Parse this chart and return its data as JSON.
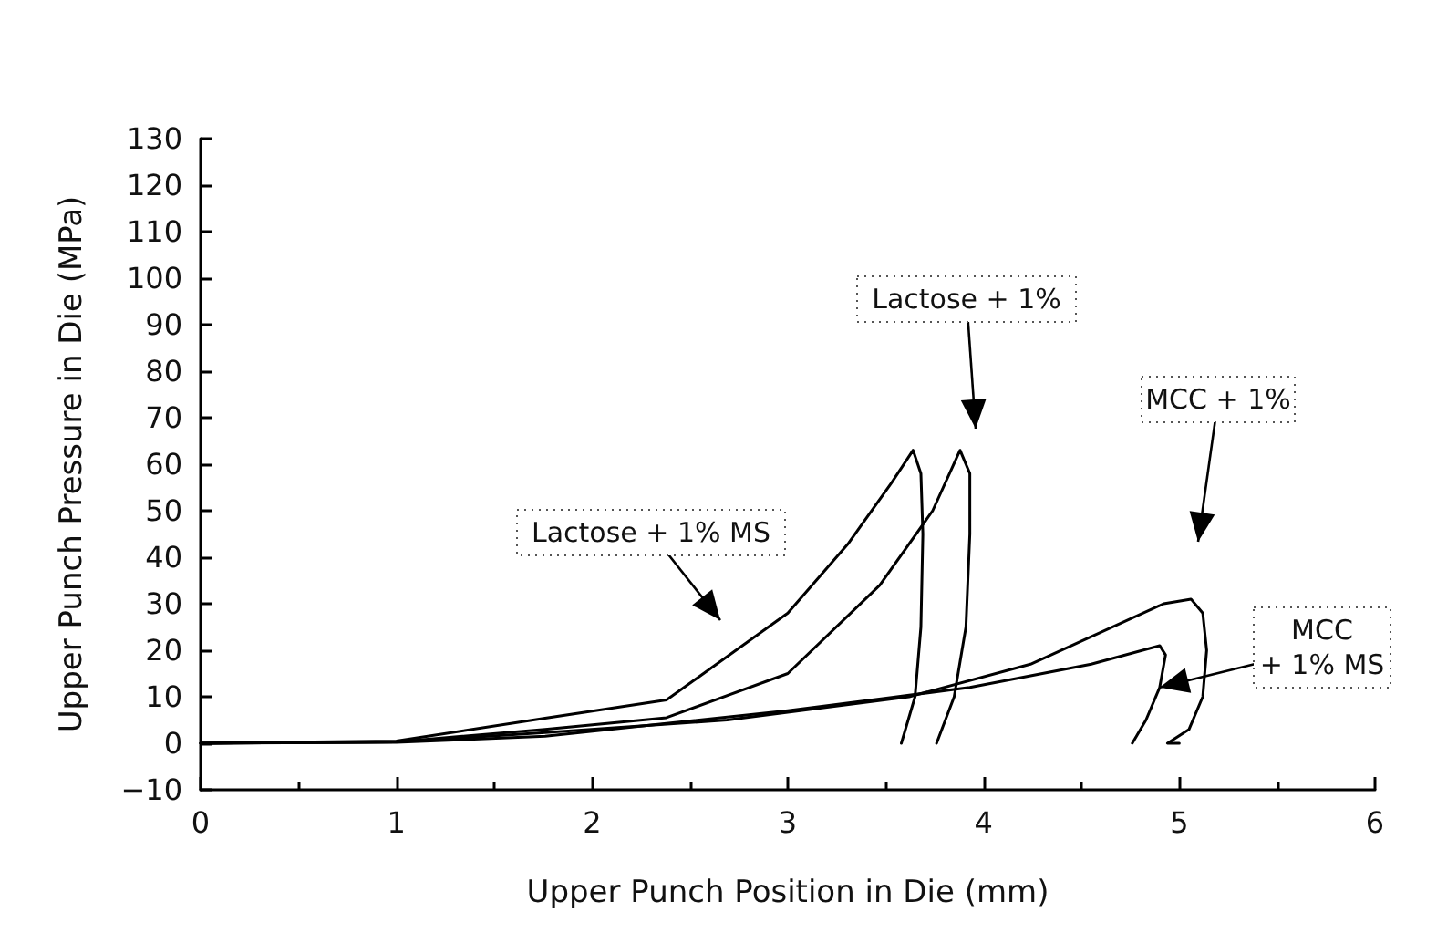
{
  "chart_data": {
    "type": "line",
    "xlabel": "Upper Punch Position in Die (mm)",
    "ylabel": "Upper Punch Pressure in Die (MPa)",
    "xlim": [
      0,
      6
    ],
    "xticks": [
      0,
      1,
      2,
      3,
      4,
      5,
      6
    ],
    "ylim": [
      -10,
      130
    ],
    "yticks": [
      -10,
      0,
      10,
      20,
      30,
      40,
      50,
      60,
      70,
      80,
      90,
      100,
      110,
      120,
      130
    ],
    "grid": false,
    "marker": "none",
    "line_style": "solid",
    "series": [
      {
        "color": "#000000",
        "x": [
          0,
          1,
          1.76,
          2.38,
          3.0,
          3.31,
          3.53,
          3.64,
          3.68,
          3.69,
          3.68,
          3.65,
          3.58
        ],
        "values": [
          0,
          0.5,
          5.4,
          9.3,
          28,
          43,
          56,
          63,
          58,
          45,
          25,
          10,
          0
        ]
      },
      {
        "color": "#000000",
        "x": [
          0,
          1,
          1.76,
          2.38,
          3.0,
          3.47,
          3.74,
          3.88,
          3.93,
          3.93,
          3.91,
          3.85,
          3.76
        ],
        "values": [
          0,
          0.3,
          3,
          5.5,
          15,
          34,
          50,
          63,
          58,
          45,
          25,
          10,
          0
        ]
      },
      {
        "color": "#000000",
        "x": [
          0,
          1,
          1.76,
          2.69,
          3.62,
          4.24,
          4.92,
          5.06,
          5.12,
          5.14,
          5.12,
          5.05,
          4.94,
          5.0
        ],
        "values": [
          0,
          0.3,
          2.3,
          5,
          10,
          17,
          30,
          31,
          28,
          20,
          10,
          3,
          0,
          0
        ]
      },
      {
        "color": "#000000",
        "x": [
          0,
          1,
          1.76,
          3.0,
          3.93,
          4.55,
          4.9,
          4.93,
          4.9,
          4.83,
          4.76
        ],
        "values": [
          0,
          0.2,
          1.5,
          7,
          12,
          17,
          21,
          19,
          12,
          5,
          0
        ]
      }
    ],
    "annotations": [
      "Lactose + 1% MS",
      "Lactose + 1%",
      "MCC + 1%",
      {
        "text": "MCC\n+ 1% MS",
        "x": 4.9,
        "y": 12
      }
    ]
  }
}
